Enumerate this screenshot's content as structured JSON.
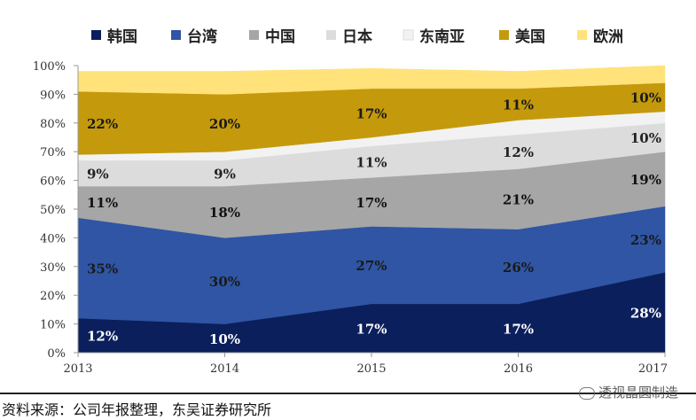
{
  "chart_data": {
    "type": "area",
    "stacked": true,
    "x": [
      "2013",
      "2014",
      "2015",
      "2016",
      "2017"
    ],
    "ylim": [
      0,
      100
    ],
    "yticks": [
      "0%",
      "10%",
      "20%",
      "30%",
      "40%",
      "50%",
      "60%",
      "70%",
      "80%",
      "90%",
      "100%"
    ],
    "grid": false,
    "legend_position": "top",
    "series": [
      {
        "name": "韩国",
        "color": "#0b1f5c",
        "label_color": "#ffffff",
        "values": [
          12,
          10,
          17,
          17,
          28
        ],
        "labels": [
          "12%",
          "10%",
          "17%",
          "17%",
          "28%"
        ]
      },
      {
        "name": "台湾",
        "color": "#2f55a4",
        "label_color": "#1a1a1a",
        "values": [
          35,
          30,
          27,
          26,
          23
        ],
        "labels": [
          "35%",
          "30%",
          "27%",
          "26%",
          "23%"
        ]
      },
      {
        "name": "中国",
        "color": "#a6a6a6",
        "label_color": "#111111",
        "values": [
          11,
          18,
          17,
          21,
          19
        ],
        "labels": [
          "11%",
          "18%",
          "17%",
          "21%",
          "19%"
        ]
      },
      {
        "name": "日本",
        "color": "#dcdcdc",
        "label_color": "#222222",
        "values": [
          9,
          9,
          11,
          12,
          10
        ],
        "labels": [
          "9%",
          "9%",
          "11%",
          "12%",
          "10%"
        ]
      },
      {
        "name": "东南亚",
        "color": "#f2f2f2",
        "label_color": "#222222",
        "values": [
          2,
          3,
          3,
          5,
          4
        ],
        "labels": [
          "",
          "",
          "",
          "",
          ""
        ]
      },
      {
        "name": "美国",
        "color": "#c49a0c",
        "label_color": "#1a1a1a",
        "values": [
          22,
          20,
          17,
          11,
          10
        ],
        "labels": [
          "22%",
          "20%",
          "17%",
          "11%",
          "10%"
        ]
      },
      {
        "name": "欧洲",
        "color": "#ffe27a",
        "label_color": "#222222",
        "values": [
          7,
          8,
          7,
          6,
          6
        ],
        "labels": [
          "",
          "",
          "",
          "",
          ""
        ]
      }
    ]
  },
  "footer": {
    "source": "资料来源：公司年报整理，东吴证券研究所",
    "watermark": "透视晶圆制造"
  }
}
